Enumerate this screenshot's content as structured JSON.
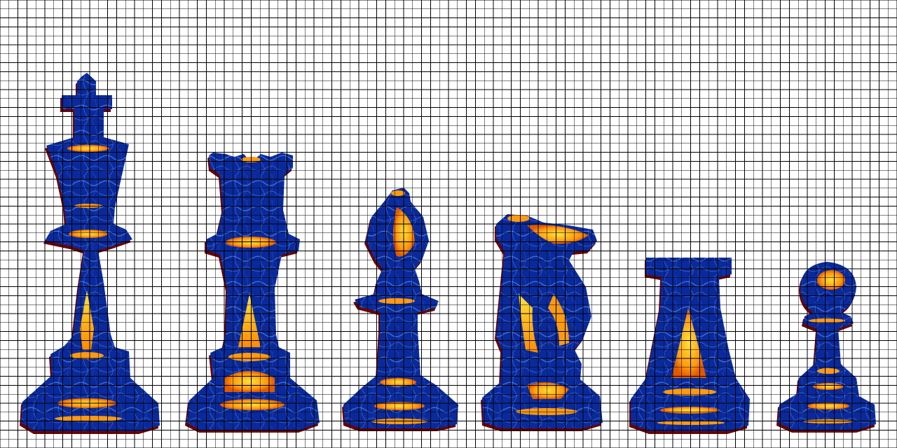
{
  "scene": {
    "background": "#ffffff",
    "grid_color": "#000000",
    "palette": {
      "body": "#0a2a9c",
      "body_dark": "#071a6a",
      "vein": "#4d7fe0",
      "hot": "#ff9a10",
      "hot_core": "#ffe23a",
      "rim": "#6a0000"
    },
    "pieces": [
      {
        "name": "king",
        "icon": "king-piece-icon"
      },
      {
        "name": "queen",
        "icon": "queen-piece-icon"
      },
      {
        "name": "bishop",
        "icon": "bishop-piece-icon"
      },
      {
        "name": "knight",
        "icon": "knight-piece-icon"
      },
      {
        "name": "rook",
        "icon": "rook-piece-icon"
      },
      {
        "name": "pawn",
        "icon": "pawn-piece-icon"
      }
    ]
  }
}
